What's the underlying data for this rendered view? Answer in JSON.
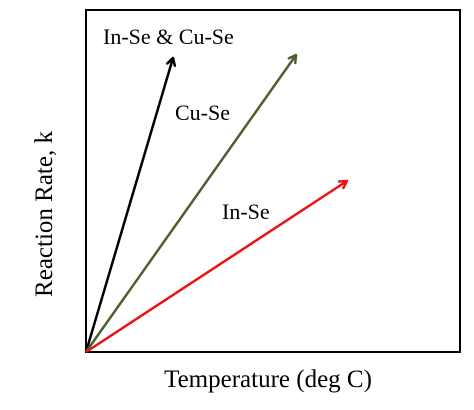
{
  "diagram": {
    "xlabel": "Temperature (deg C)",
    "ylabel": "Reaction Rate, k",
    "arrows": [
      {
        "label": "In-Se & Cu-Se",
        "color": "#000000"
      },
      {
        "label": "Cu-Se",
        "color": "#4d5f2e"
      },
      {
        "label": "In-Se",
        "color": "#ee1111"
      }
    ]
  }
}
